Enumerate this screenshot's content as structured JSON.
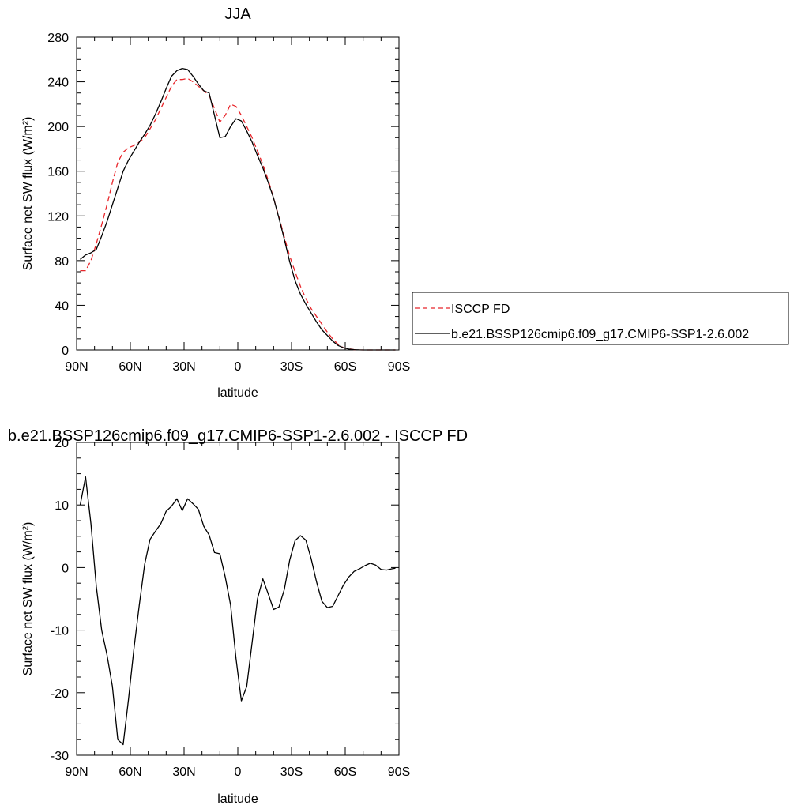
{
  "colors": {
    "model_line": "#000000",
    "obs_line": "#e8252a",
    "axis": "#000000",
    "background": "#ffffff"
  },
  "chart_data": [
    {
      "type": "line",
      "title": "JJA",
      "xlabel": "latitude",
      "ylabel": "Surface net SW flux (W/m²)",
      "xlim": [
        90,
        -90
      ],
      "ylim": [
        0,
        280
      ],
      "x_ticks": [
        90,
        60,
        30,
        0,
        -30,
        -60,
        -90
      ],
      "x_tick_labels": [
        "90N",
        "60N",
        "30N",
        "0",
        "30S",
        "60S",
        "90S"
      ],
      "y_ticks": [
        0,
        40,
        80,
        120,
        160,
        200,
        240,
        280
      ],
      "y_tick_labels": [
        "0",
        "40",
        "80",
        "120",
        "160",
        "200",
        "240",
        "280"
      ],
      "legend_position": "right",
      "series": [
        {
          "name": "ISCCP FD",
          "style": "dashed",
          "color": "#e8252a",
          "x": [
            88,
            85,
            82,
            79,
            76,
            73,
            70,
            67,
            64,
            61,
            58,
            55,
            52,
            49,
            46,
            43,
            40,
            37,
            34,
            31,
            28,
            25,
            22,
            19,
            16,
            13,
            10,
            7,
            4,
            1,
            -2,
            -5,
            -8,
            -11,
            -14,
            -17,
            -20,
            -23,
            -26,
            -29,
            -32,
            -35,
            -38,
            -41,
            -44,
            -47,
            -50,
            -53,
            -56,
            -59,
            -62,
            -65,
            -68,
            -71,
            -74,
            -77,
            -80,
            -83,
            -86,
            -88
          ],
          "y": [
            71,
            71,
            80,
            95,
            112,
            130,
            150,
            168,
            177,
            181,
            183,
            186,
            190,
            198,
            206,
            216,
            226,
            236,
            242,
            242,
            243,
            240,
            236,
            232,
            228,
            216,
            204,
            210,
            220,
            218,
            210,
            200,
            190,
            178,
            166,
            152,
            136,
            119,
            101,
            84,
            70,
            57,
            46,
            37,
            30,
            23,
            16,
            10,
            5,
            2,
            1,
            0.3,
            0.1,
            0,
            0,
            0,
            0,
            0,
            0,
            0
          ]
        },
        {
          "name": "b.e21.BSSP126cmip6.f09_g17.CMIP6-SSP1-2.6.002",
          "style": "solid",
          "color": "#000000",
          "x": [
            88,
            85,
            82,
            79,
            76,
            73,
            70,
            67,
            64,
            61,
            58,
            55,
            52,
            49,
            46,
            43,
            40,
            37,
            34,
            31,
            28,
            25,
            22,
            19,
            16,
            13,
            10,
            7,
            4,
            1,
            -2,
            -5,
            -8,
            -11,
            -14,
            -17,
            -20,
            -23,
            -26,
            -29,
            -32,
            -35,
            -38,
            -41,
            -44,
            -47,
            -50,
            -53,
            -56,
            -59,
            -62,
            -65,
            -68,
            -71,
            -74,
            -77,
            -80,
            -83,
            -86,
            -88
          ],
          "y": [
            81,
            85,
            87,
            90,
            102,
            115,
            130,
            145,
            160,
            170,
            178,
            186,
            193,
            201,
            211,
            222,
            234,
            245,
            250,
            252,
            251,
            245,
            238,
            232,
            230,
            210,
            190,
            191,
            200,
            207,
            205,
            196,
            186,
            174,
            163,
            150,
            136,
            118,
            99,
            79,
            62,
            50,
            41,
            33,
            25,
            18,
            13,
            8,
            4,
            2,
            0.8,
            0.3,
            0.1,
            0,
            0,
            0,
            0,
            0,
            0,
            0
          ]
        }
      ]
    },
    {
      "type": "line",
      "title": "b.e21.BSSP126cmip6.f09_g17.CMIP6-SSP1-2.6.002 - ISCCP FD",
      "xlabel": "latitude",
      "ylabel": "Surface net SW flux (W/m²)",
      "xlim": [
        90,
        -90
      ],
      "ylim": [
        -30,
        20
      ],
      "x_ticks": [
        90,
        60,
        30,
        0,
        -30,
        -60,
        -90
      ],
      "x_tick_labels": [
        "90N",
        "60N",
        "30N",
        "0",
        "30S",
        "60S",
        "90S"
      ],
      "y_ticks": [
        -30,
        -20,
        -10,
        0,
        10,
        20
      ],
      "y_tick_labels": [
        "-30",
        "-20",
        "-10",
        "0",
        "10",
        "20"
      ],
      "series": [
        {
          "style": "solid",
          "color": "#000000",
          "x": [
            88,
            85,
            82,
            79,
            76,
            73,
            70,
            67,
            64,
            61,
            58,
            55,
            52,
            49,
            46,
            43,
            40,
            37,
            34,
            31,
            28,
            25,
            22,
            19,
            16,
            13,
            10,
            7,
            4,
            1,
            -2,
            -5,
            -8,
            -11,
            -14,
            -17,
            -20,
            -23,
            -26,
            -29,
            -32,
            -35,
            -38,
            -41,
            -44,
            -47,
            -50,
            -53,
            -56,
            -59,
            -62,
            -65,
            -68,
            -71,
            -74,
            -77,
            -80,
            -83,
            -86,
            -88
          ],
          "y": [
            10,
            14.5,
            7,
            -3,
            -10,
            -14,
            -19,
            -27.5,
            -28.3,
            -21,
            -13,
            -6,
            0.5,
            4.5,
            5.8,
            7,
            9,
            9.8,
            11,
            9.1,
            11,
            10.2,
            9.3,
            6.6,
            5.2,
            2.4,
            2.2,
            -1.5,
            -6,
            -14.5,
            -21.3,
            -19,
            -12,
            -5,
            -1.8,
            -4.2,
            -6.7,
            -6.3,
            -3.5,
            1.2,
            4.3,
            5.1,
            4.4,
            1.4,
            -2.3,
            -5.4,
            -6.4,
            -6.2,
            -4.5,
            -2.8,
            -1.5,
            -0.6,
            -0.2,
            0.3,
            0.7,
            0.4,
            -0.3,
            -0.4,
            -0.2,
            -0.1
          ]
        }
      ]
    }
  ]
}
